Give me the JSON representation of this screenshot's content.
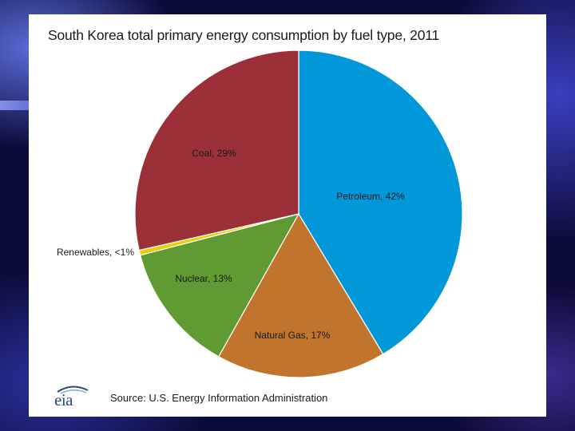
{
  "chart_data": {
    "type": "pie",
    "title": "South Korea total primary energy consumption by fuel type, 2011",
    "slices": [
      {
        "label": "Petroleum, 42%",
        "value": 42,
        "color": "#0098d8"
      },
      {
        "label": "Natural Gas, 17%",
        "value": 17,
        "color": "#c0742c"
      },
      {
        "label": "Nuclear, 13%",
        "value": 13,
        "color": "#5f9a33"
      },
      {
        "label": "Renewables, <1%",
        "value": 0.5,
        "color": "#e8d000"
      },
      {
        "label": "Coal, 29%",
        "value": 29,
        "color": "#9c3038"
      }
    ]
  },
  "source": "Source: U.S. Energy Information Administration",
  "logo": {
    "text": "eia",
    "icon": "eia-logo-icon"
  }
}
